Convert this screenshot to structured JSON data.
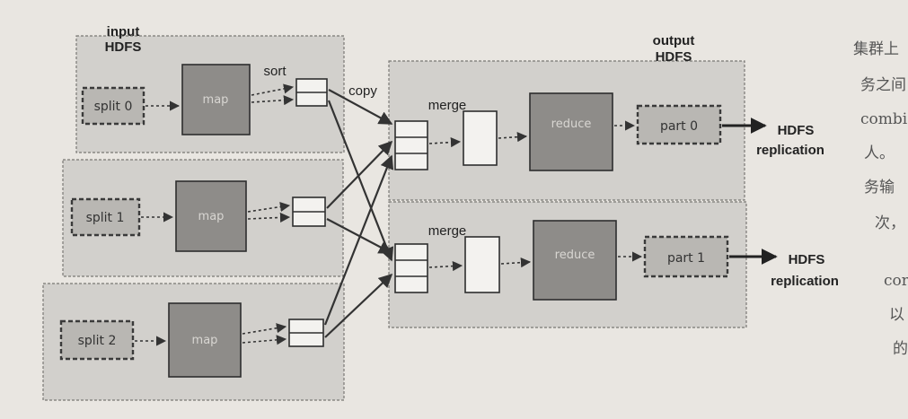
{
  "header": {
    "input_line1": "input",
    "input_line2": "HDFS",
    "output_line1": "output",
    "output_line2": "HDFS"
  },
  "labels": {
    "sort": "sort",
    "copy": "copy",
    "merge_0": "merge",
    "merge_1": "merge"
  },
  "splits": [
    "split 0",
    "split 1",
    "split 2"
  ],
  "maps": [
    "map",
    "map",
    "map"
  ],
  "reduces": [
    "reduce",
    "reduce"
  ],
  "parts": [
    "part 0",
    "part 1"
  ],
  "replication": [
    {
      "line1": "HDFS",
      "line2": "replication"
    },
    {
      "line1": "HDFS",
      "line2": "replication"
    }
  ],
  "margin_text": [
    "集群上",
    "务之间",
    "combi",
    "人。",
    "务输",
    "次，",
    "cor",
    "以",
    "的"
  ],
  "colors": {
    "panel": "#d2d0cc",
    "task": "#8e8c89",
    "paper": "#e9e6e1"
  }
}
